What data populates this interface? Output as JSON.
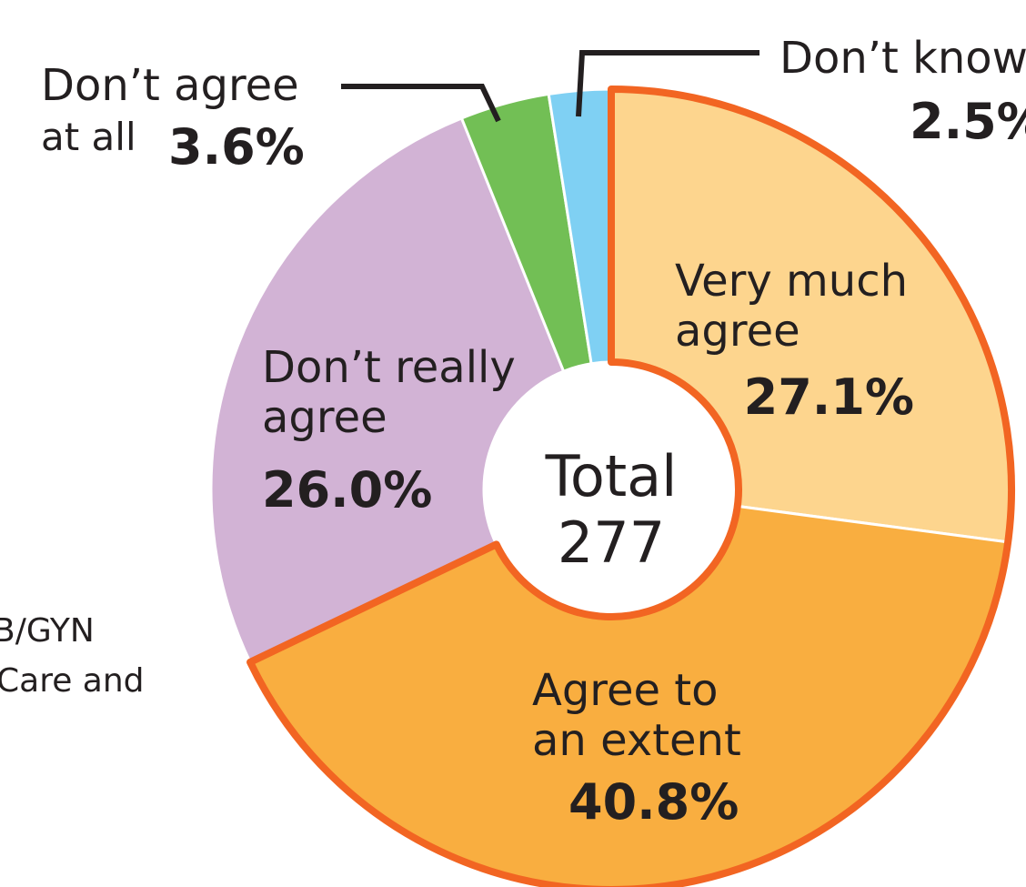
{
  "chart_data": {
    "type": "donut",
    "categories": [
      [
        "Very much",
        "agree"
      ],
      [
        "Agree to",
        "an extent"
      ],
      [
        "Don’t really",
        "agree"
      ],
      [
        "Don’t agree",
        "at all"
      ],
      [
        "Don’t know"
      ]
    ],
    "values": [
      27.1,
      40.8,
      26.0,
      3.6,
      2.5
    ],
    "value_labels": [
      "27.1%",
      "40.8%",
      "26.0%",
      "3.6%",
      "2.5%"
    ],
    "colors": [
      "#fdd58e",
      "#f9ae40",
      "#d2b3d5",
      "#72bf55",
      "#7fd0f3"
    ],
    "highlight_color": "#f26522",
    "center_label": "Total",
    "center_value": 277,
    "side_text": [
      "B/GYN",
      "Care and"
    ]
  }
}
